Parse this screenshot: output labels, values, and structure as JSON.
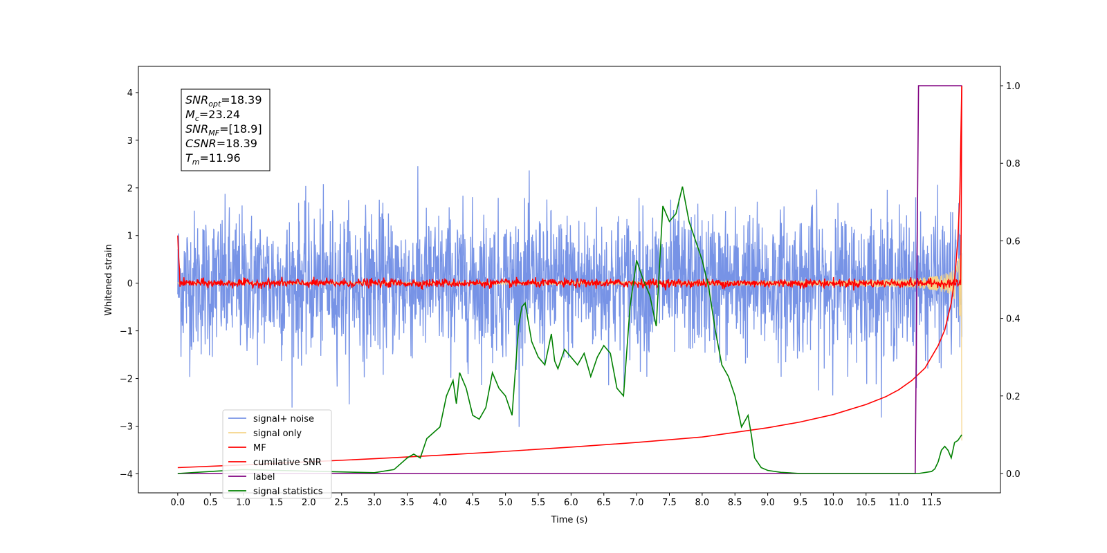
{
  "chart_data": {
    "type": "line",
    "xlabel": "Time (s)",
    "ylabel": "Whitened strain",
    "xlim": [
      -0.6,
      12.55
    ],
    "ylim": [
      -4.4,
      4.55
    ],
    "y2lim": [
      -0.05,
      1.05
    ],
    "x_ticks": [
      "0.0",
      "0.5",
      "1.0",
      "1.5",
      "2.0",
      "2.5",
      "3.0",
      "3.5",
      "4.0",
      "4.5",
      "5.0",
      "5.5",
      "6.0",
      "6.5",
      "7.0",
      "7.5",
      "8.0",
      "8.5",
      "9.0",
      "9.5",
      "10.0",
      "10.5",
      "11.0",
      "11.5"
    ],
    "y_ticks": [
      "-4",
      "-3",
      "-2",
      "-1",
      "0",
      "1",
      "2",
      "3",
      "4"
    ],
    "y2_ticks": [
      "0.0",
      "0.2",
      "0.4",
      "0.6",
      "0.8",
      "1.0"
    ],
    "annotations": [
      {
        "main": "SNR",
        "sub": "opt",
        "rest": "=18.39"
      },
      {
        "main": "M",
        "sub": "c",
        "rest": "=23.24"
      },
      {
        "main": "SNR",
        "sub": "MF",
        "rest": "=[18.9]"
      },
      {
        "main": "CSNR",
        "sub": "",
        "rest": "=18.39"
      },
      {
        "main": "T",
        "sub": "m",
        "rest": "=11.96"
      }
    ],
    "legend_position": "lower-left",
    "grid": false,
    "series": [
      {
        "name": "signal+ noise",
        "color": "#7793e6",
        "axis": "left",
        "kind": "noise",
        "std": 0.75,
        "x_start": 0.0,
        "x_end": 11.96
      },
      {
        "name": "signal only",
        "color": "#f5d48a",
        "axis": "left",
        "kind": "chirp",
        "x_start": 0.0,
        "x_end": 11.96,
        "peak_amplitude": 2.6,
        "end_value": -3.3
      },
      {
        "name": "MF",
        "color": "#ff0000",
        "axis": "left",
        "kind": "matched_filter",
        "x_start": 0.0,
        "x_end": 11.96,
        "start_value": 1.0,
        "end_value": 4.15
      },
      {
        "name": "cumilative SNR",
        "color": "#ff0000",
        "axis": "right",
        "kind": "line",
        "x": [
          0.0,
          1.0,
          2.0,
          3.0,
          4.0,
          5.0,
          6.0,
          7.0,
          8.0,
          9.0,
          9.5,
          10.0,
          10.5,
          10.8,
          11.0,
          11.2,
          11.4,
          11.6,
          11.7,
          11.8,
          11.85,
          11.9,
          11.93,
          11.96
        ],
        "y": [
          0.015,
          0.022,
          0.03,
          0.038,
          0.047,
          0.057,
          0.068,
          0.08,
          0.094,
          0.118,
          0.133,
          0.152,
          0.178,
          0.198,
          0.216,
          0.24,
          0.272,
          0.33,
          0.37,
          0.44,
          0.5,
          0.6,
          0.72,
          1.0
        ]
      },
      {
        "name": "label",
        "color": "#800080",
        "axis": "right",
        "kind": "line",
        "x": [
          0.0,
          11.25,
          11.3,
          11.96
        ],
        "y": [
          0.0,
          0.0,
          1.0,
          1.0
        ]
      },
      {
        "name": "signal statistics",
        "color": "#008000",
        "axis": "right",
        "kind": "line",
        "x": [
          0.0,
          0.5,
          1.0,
          1.5,
          2.0,
          2.5,
          3.0,
          3.3,
          3.5,
          3.6,
          3.7,
          3.8,
          4.0,
          4.1,
          4.2,
          4.25,
          4.3,
          4.4,
          4.5,
          4.6,
          4.7,
          4.8,
          4.9,
          5.0,
          5.1,
          5.2,
          5.25,
          5.3,
          5.4,
          5.5,
          5.6,
          5.7,
          5.75,
          5.8,
          5.9,
          6.0,
          6.1,
          6.2,
          6.3,
          6.4,
          6.5,
          6.6,
          6.7,
          6.8,
          6.9,
          7.0,
          7.1,
          7.2,
          7.3,
          7.4,
          7.5,
          7.6,
          7.7,
          7.8,
          7.9,
          8.0,
          8.1,
          8.2,
          8.3,
          8.4,
          8.5,
          8.6,
          8.7,
          8.75,
          8.8,
          8.9,
          9.0,
          9.2,
          9.5,
          10.0,
          10.5,
          11.0,
          11.3,
          11.5,
          11.55,
          11.6,
          11.65,
          11.7,
          11.75,
          11.8,
          11.85,
          11.9,
          11.96
        ],
        "y": [
          0.0,
          0.005,
          0.01,
          0.008,
          0.006,
          0.004,
          0.002,
          0.01,
          0.04,
          0.05,
          0.04,
          0.09,
          0.12,
          0.2,
          0.24,
          0.18,
          0.26,
          0.22,
          0.15,
          0.14,
          0.17,
          0.26,
          0.22,
          0.2,
          0.15,
          0.38,
          0.43,
          0.44,
          0.34,
          0.3,
          0.28,
          0.36,
          0.29,
          0.27,
          0.32,
          0.3,
          0.28,
          0.31,
          0.25,
          0.3,
          0.33,
          0.31,
          0.22,
          0.2,
          0.43,
          0.55,
          0.5,
          0.46,
          0.38,
          0.69,
          0.65,
          0.67,
          0.74,
          0.65,
          0.6,
          0.55,
          0.48,
          0.37,
          0.28,
          0.25,
          0.2,
          0.12,
          0.15,
          0.1,
          0.04,
          0.015,
          0.008,
          0.003,
          0.0,
          0.0,
          0.0,
          0.0,
          0.0,
          0.005,
          0.012,
          0.03,
          0.06,
          0.07,
          0.06,
          0.04,
          0.08,
          0.085,
          0.1
        ]
      }
    ]
  }
}
